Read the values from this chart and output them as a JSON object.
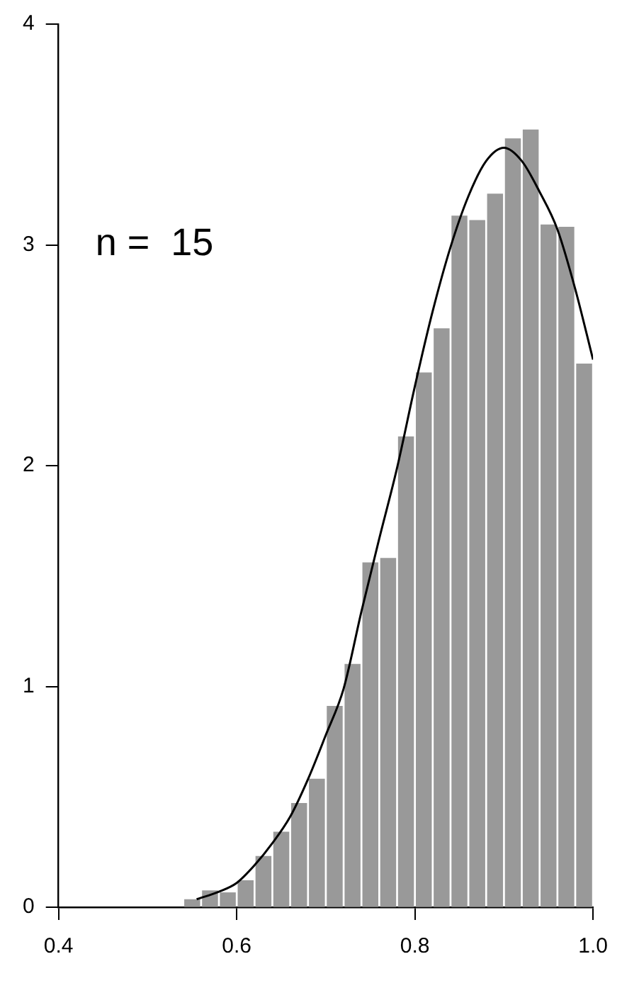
{
  "chart_data": {
    "type": "histogram",
    "color": "#999999",
    "bins": [
      0.54,
      0.56,
      0.58,
      0.6,
      0.62,
      0.64,
      0.66,
      0.68,
      0.7,
      0.72,
      0.74,
      0.76,
      0.78,
      0.8,
      0.82,
      0.84,
      0.86,
      0.88,
      0.9,
      0.92,
      0.94,
      0.96,
      0.98,
      1.0
    ],
    "values": [
      0.034,
      0.074,
      0.065,
      0.12,
      0.23,
      0.34,
      0.47,
      0.58,
      0.91,
      1.1,
      1.56,
      1.58,
      2.13,
      2.42,
      2.62,
      3.13,
      3.11,
      3.23,
      3.48,
      3.52,
      3.09,
      3.08,
      2.46
    ],
    "series": [
      {
        "type": "line",
        "color": "#000000",
        "x": [
          0.555,
          0.58,
          0.6,
          0.62,
          0.64,
          0.66,
          0.68,
          0.7,
          0.72,
          0.74,
          0.76,
          0.78,
          0.8,
          0.82,
          0.84,
          0.86,
          0.88,
          0.9,
          0.92,
          0.94,
          0.96,
          0.98,
          1.0
        ],
        "values": [
          0.036,
          0.07,
          0.11,
          0.19,
          0.29,
          0.41,
          0.58,
          0.78,
          0.99,
          1.34,
          1.67,
          1.99,
          2.36,
          2.7,
          2.99,
          3.22,
          3.38,
          3.44,
          3.38,
          3.24,
          3.07,
          2.8,
          2.48
        ]
      }
    ],
    "xlim": [
      0.4,
      1.0
    ],
    "xticks": [
      0.4,
      0.6,
      0.8,
      {
        "value": 1,
        "label": "1.0"
      }
    ],
    "ylim": [
      0,
      4
    ],
    "yticks": [
      0,
      1,
      2,
      3,
      4
    ],
    "grid": false,
    "legend": false,
    "annotations": [
      "n =  15"
    ]
  }
}
